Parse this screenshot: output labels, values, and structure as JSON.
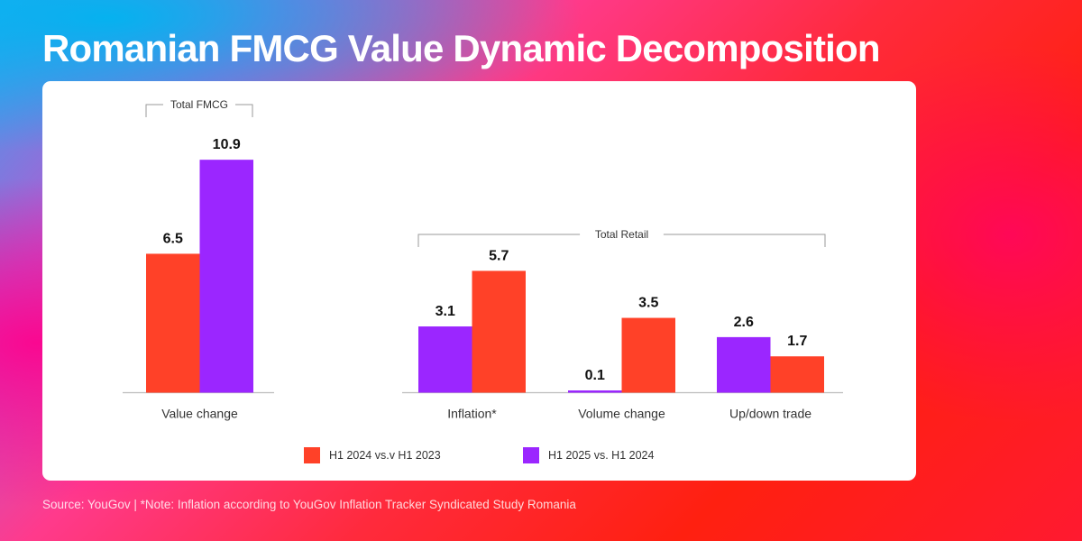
{
  "title": "Romanian FMCG Value Dynamic Decomposition",
  "footer": "Source: YouGov  |  *Note: Inflation according to YouGov Inflation Tracker Syndicated Study Romania",
  "colors": {
    "series_2024": "#ff4128",
    "series_2025": "#9b26ff"
  },
  "legend": [
    {
      "label": "H1 2024 vs.v H1 2023",
      "series": "series_2024"
    },
    {
      "label": "H1 2025 vs. H1 2024",
      "series": "series_2025"
    }
  ],
  "chart_data": {
    "type": "bar",
    "title": "Romanian FMCG Value Dynamic Decomposition",
    "xlabel": "",
    "ylabel": "",
    "ylim": [
      0,
      11
    ],
    "grid": false,
    "legend_position": "bottom",
    "series": [
      {
        "name": "H1 2024 vs.v H1 2023",
        "key": "series_2024"
      },
      {
        "name": "H1 2025 vs. H1 2024",
        "key": "series_2025"
      }
    ],
    "groups": [
      {
        "bracket_label": "Total FMCG",
        "categories": [
          {
            "label": "Value change",
            "bars": [
              {
                "series": "series_2024",
                "value": 6.5,
                "label": "6.5"
              },
              {
                "series": "series_2025",
                "value": 10.9,
                "label": "10.9"
              }
            ]
          }
        ]
      },
      {
        "bracket_label": "Total Retail",
        "categories": [
          {
            "label": "Inflation*",
            "bars": [
              {
                "series": "series_2025",
                "value": 3.1,
                "label": "3.1"
              },
              {
                "series": "series_2024",
                "value": 5.7,
                "label": "5.7"
              }
            ]
          },
          {
            "label": "Volume change",
            "bars": [
              {
                "series": "series_2025",
                "value": 0.1,
                "label": "0.1"
              },
              {
                "series": "series_2024",
                "value": 3.5,
                "label": "3.5"
              }
            ]
          },
          {
            "label": "Up/down trade",
            "bars": [
              {
                "series": "series_2025",
                "value": 2.6,
                "label": "2.6"
              },
              {
                "series": "series_2024",
                "value": 1.7,
                "label": "1.7"
              }
            ]
          }
        ]
      }
    ]
  }
}
